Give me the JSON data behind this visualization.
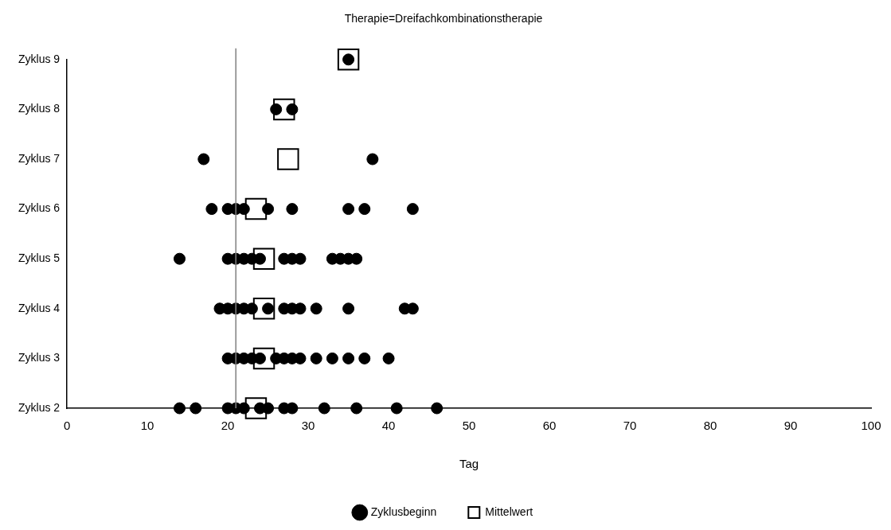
{
  "chart_data": {
    "type": "scatter",
    "orientation": "horizontal",
    "title": "Therapie=Dreifachkombinationstherapie",
    "xlabel": "Tag",
    "categories": [
      "Zyklus 9",
      "Zyklus 8",
      "Zyklus 7",
      "Zyklus 6",
      "Zyklus 5",
      "Zyklus 4",
      "Zyklus 3",
      "Zyklus 2"
    ],
    "xlim": [
      0,
      100
    ],
    "xticks": [
      0,
      10,
      20,
      30,
      40,
      50,
      60,
      70,
      80,
      90,
      100
    ],
    "grid": false,
    "legend": "bottom",
    "ref_lines": [
      {
        "axis": "x",
        "value": 21,
        "color": "#808080"
      }
    ],
    "series": [
      {
        "name": "Zyklusbeginn",
        "color": "#000000",
        "marker": "circle",
        "x": [
          "Zyklus 9",
          "Zyklus 8",
          "Zyklus 8",
          "Zyklus 7",
          "Zyklus 7",
          "Zyklus 6",
          "Zyklus 6",
          "Zyklus 6",
          "Zyklus 6",
          "Zyklus 6",
          "Zyklus 6",
          "Zyklus 6",
          "Zyklus 6",
          "Zyklus 6",
          "Zyklus 5",
          "Zyklus 5",
          "Zyklus 5",
          "Zyklus 5",
          "Zyklus 5",
          "Zyklus 5",
          "Zyklus 5",
          "Zyklus 5",
          "Zyklus 5",
          "Zyklus 5",
          "Zyklus 5",
          "Zyklus 5",
          "Zyklus 5",
          "Zyklus 4",
          "Zyklus 4",
          "Zyklus 4",
          "Zyklus 4",
          "Zyklus 4",
          "Zyklus 4",
          "Zyklus 4",
          "Zyklus 4",
          "Zyklus 4",
          "Zyklus 4",
          "Zyklus 4",
          "Zyklus 4",
          "Zyklus 4",
          "Zyklus 3",
          "Zyklus 3",
          "Zyklus 3",
          "Zyklus 3",
          "Zyklus 3",
          "Zyklus 3",
          "Zyklus 3",
          "Zyklus 3",
          "Zyklus 3",
          "Zyklus 3",
          "Zyklus 3",
          "Zyklus 3",
          "Zyklus 3",
          "Zyklus 3",
          "Zyklus 2",
          "Zyklus 2",
          "Zyklus 2",
          "Zyklus 2",
          "Zyklus 2",
          "Zyklus 2",
          "Zyklus 2",
          "Zyklus 2",
          "Zyklus 2",
          "Zyklus 2",
          "Zyklus 2",
          "Zyklus 2",
          "Zyklus 2"
        ],
        "values": [
          35,
          26,
          28,
          17,
          38,
          18,
          20,
          21,
          22,
          25,
          28,
          35,
          37,
          43,
          14,
          20,
          21,
          22,
          23,
          24,
          27,
          28,
          29,
          33,
          34,
          35,
          36,
          19,
          20,
          21,
          22,
          23,
          25,
          27,
          28,
          29,
          31,
          35,
          42,
          43,
          20,
          21,
          22,
          23,
          24,
          26,
          27,
          28,
          29,
          31,
          33,
          35,
          37,
          40,
          14,
          16,
          20,
          21,
          22,
          24,
          25,
          27,
          28,
          32,
          36,
          41,
          46
        ]
      },
      {
        "name": "Mittelwert",
        "color": "#000000",
        "marker": "square",
        "x": [
          "Zyklus 9",
          "Zyklus 8",
          "Zyklus 7",
          "Zyklus 6",
          "Zyklus 5",
          "Zyklus 4",
          "Zyklus 3",
          "Zyklus 2"
        ],
        "values": [
          35,
          27,
          27.5,
          23.5,
          24.5,
          24.5,
          24.5,
          23.5
        ]
      }
    ]
  }
}
